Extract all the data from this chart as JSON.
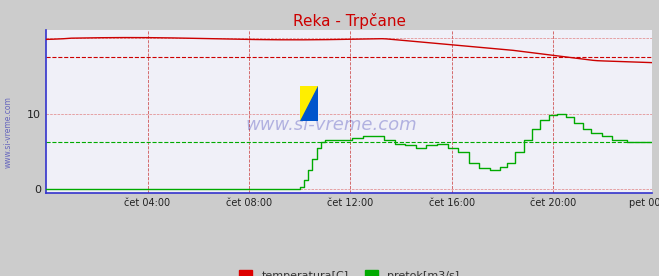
{
  "title": "Reka - Trpčane",
  "bg_color": "#cccccc",
  "plot_bg_color": "#f0f0f8",
  "axis_color": "#3333cc",
  "xlabel_ticks": [
    "čet 04:00",
    "čet 08:00",
    "čet 12:00",
    "čet 16:00",
    "čet 20:00",
    "pet 00:00"
  ],
  "yticks": [
    0,
    10
  ],
  "ylim": [
    -0.5,
    21
  ],
  "xlim_n": 288,
  "temp_avg": 17.5,
  "flow_avg": 6.2,
  "watermark": "www.si-vreme.com",
  "legend_items": [
    {
      "label": "temperatura[C]",
      "color": "#dd0000"
    },
    {
      "label": "pretok[m3/s]",
      "color": "#00aa00"
    }
  ],
  "temp_color": "#cc0000",
  "flow_color": "#00aa00",
  "grid_color_v": "#cc4444",
  "grid_color_h": "#dd6666"
}
